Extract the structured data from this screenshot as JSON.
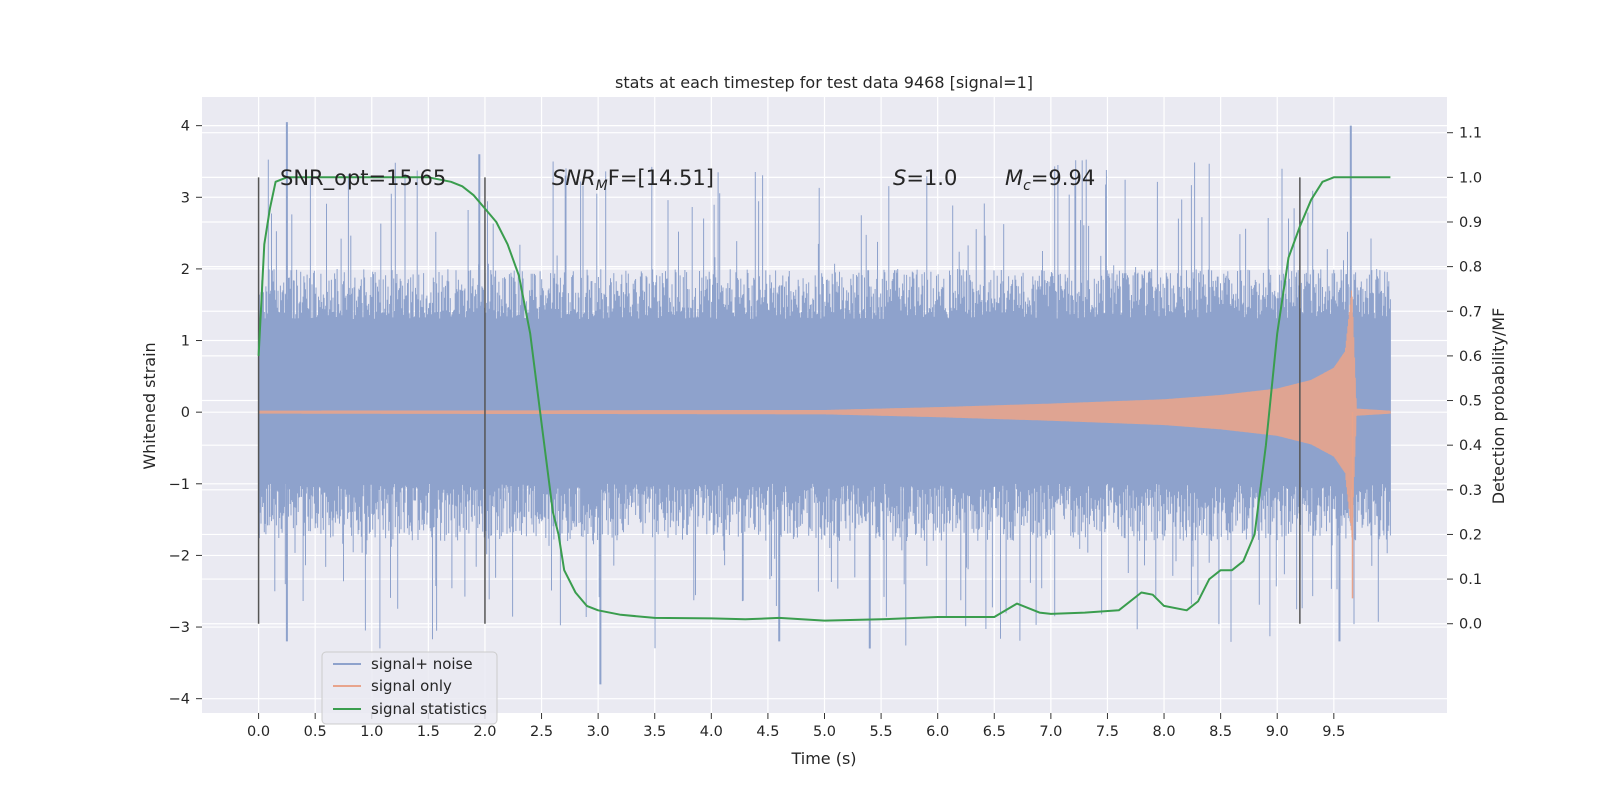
{
  "chart_data": {
    "type": "line",
    "title": "stats at each timestep for test data 9468 [signal=1]",
    "xlabel": "Time (s)",
    "ylabel": "Whitened strain",
    "y2label": "Detection probability/MF",
    "xlim": [
      -0.5,
      10.5
    ],
    "ylim": [
      -4.2,
      4.4
    ],
    "y2lim": [
      -0.2,
      1.18
    ],
    "x_ticks": [
      "0.0",
      "0.5",
      "1.0",
      "1.5",
      "2.0",
      "2.5",
      "3.0",
      "3.5",
      "4.0",
      "4.5",
      "5.0",
      "5.5",
      "6.0",
      "6.5",
      "7.0",
      "7.5",
      "8.0",
      "8.5",
      "9.0",
      "9.5"
    ],
    "y_ticks": [
      "4",
      "3",
      "2",
      "1",
      "0",
      "−1",
      "−2",
      "−3",
      "−4"
    ],
    "y2_ticks": [
      "1.1",
      "1.0",
      "0.9",
      "0.8",
      "0.7",
      "0.6",
      "0.5",
      "0.4",
      "0.3",
      "0.2",
      "0.1",
      "0.0"
    ],
    "grid": true,
    "legend_location": "lower-left",
    "annotations": {
      "snr_opt": "SNR_opt=15.65",
      "snr_mf_base": "SNR",
      "snr_mf_sub": "M",
      "snr_mf_rest": "F=[14.51]",
      "s_var": "S",
      "s_rest": "=1.0",
      "mc_var": "M",
      "mc_sub": "c",
      "mc_rest": "=9.94"
    },
    "vertical_lines_x": [
      0.0,
      2.0,
      9.2
    ],
    "series": [
      {
        "name": "signal+ noise",
        "color": "#8ea2cc",
        "axis": "left",
        "x_range": [
          0.0,
          10.0
        ],
        "core_band": [
          -1.0,
          1.3
        ],
        "typical_band": [
          -1.8,
          2.0
        ],
        "extreme_band": [
          -3.8,
          4.05
        ]
      },
      {
        "name": "signal only",
        "color": "#e8a48c",
        "axis": "left",
        "x_range": [
          0.0,
          10.0
        ],
        "envelope_x": [
          0.0,
          5.0,
          6.0,
          7.0,
          8.0,
          8.5,
          9.0,
          9.3,
          9.5,
          9.6,
          9.66,
          9.7,
          10.0
        ],
        "envelope_y": [
          0.02,
          0.03,
          0.07,
          0.12,
          0.18,
          0.24,
          0.33,
          0.45,
          0.62,
          0.85,
          1.75,
          0.05,
          0.02
        ],
        "min_dip": -2.6
      },
      {
        "name": "signal statistics",
        "color": "#3a9d4e",
        "axis": "right",
        "x": [
          0.0,
          0.05,
          0.1,
          0.15,
          0.25,
          0.5,
          1.0,
          1.5,
          1.7,
          1.8,
          1.9,
          2.0,
          2.1,
          2.2,
          2.3,
          2.4,
          2.5,
          2.6,
          2.65,
          2.7,
          2.8,
          2.9,
          3.0,
          3.2,
          3.5,
          4.0,
          4.3,
          4.6,
          5.0,
          5.5,
          6.0,
          6.5,
          6.7,
          6.9,
          7.0,
          7.3,
          7.6,
          7.8,
          7.9,
          8.0,
          8.2,
          8.3,
          8.4,
          8.5,
          8.6,
          8.7,
          8.8,
          8.9,
          9.0,
          9.1,
          9.2,
          9.3,
          9.4,
          9.5,
          9.6,
          9.7,
          10.0
        ],
        "y": [
          0.6,
          0.85,
          0.93,
          0.99,
          1.0,
          1.0,
          1.0,
          1.0,
          0.99,
          0.98,
          0.96,
          0.93,
          0.9,
          0.85,
          0.78,
          0.65,
          0.45,
          0.25,
          0.2,
          0.12,
          0.07,
          0.04,
          0.03,
          0.02,
          0.013,
          0.012,
          0.01,
          0.013,
          0.007,
          0.01,
          0.015,
          0.015,
          0.045,
          0.025,
          0.022,
          0.025,
          0.03,
          0.07,
          0.065,
          0.04,
          0.03,
          0.05,
          0.1,
          0.12,
          0.12,
          0.14,
          0.2,
          0.4,
          0.65,
          0.82,
          0.89,
          0.95,
          0.99,
          1.0,
          1.0,
          1.0,
          1.0
        ]
      }
    ]
  }
}
